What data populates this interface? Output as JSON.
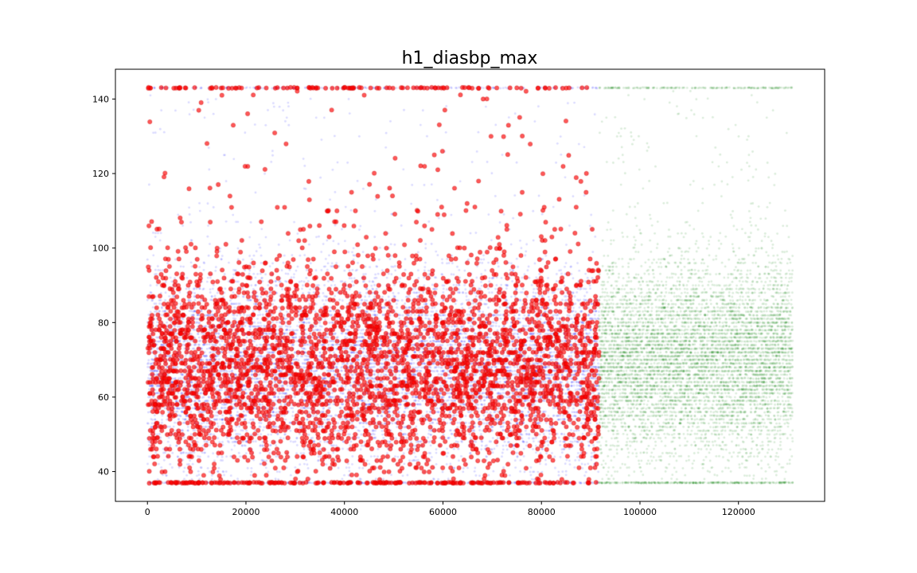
{
  "chart_data": {
    "type": "scatter",
    "title": "h1_diasbp_max",
    "xlabel": "",
    "ylabel": "",
    "xlim": [
      -6500,
      137500
    ],
    "ylim": [
      32,
      148
    ],
    "x_ticks": [
      0,
      20000,
      40000,
      60000,
      80000,
      100000,
      120000
    ],
    "y_ticks": [
      40,
      60,
      80,
      100,
      120,
      140
    ],
    "grid": false,
    "legend": "none",
    "series": [
      {
        "role": "train-negative",
        "color": "#0000ff",
        "opacity": 0.15,
        "x_range": [
          0,
          91700
        ],
        "y_range": [
          37,
          143
        ],
        "y_step": 1,
        "y_mode": 68,
        "y_spread": 13,
        "y_min_cluster": 37,
        "y_max_cluster": 143
      },
      {
        "role": "train-positive",
        "color": "#ff0000",
        "opacity": 0.65,
        "x_range": [
          0,
          91700
        ],
        "y_range": [
          37,
          143
        ],
        "y_step": 1,
        "y_mode": 68,
        "y_spread": 15,
        "y_min_cluster": 37,
        "y_max_cluster": 143
      },
      {
        "role": "test",
        "color": "#008000",
        "opacity": 0.15,
        "x_range": [
          91700,
          131000
        ],
        "y_range": [
          37,
          143
        ],
        "y_step": 1,
        "y_mode": 70,
        "y_spread": 13,
        "y_min_cluster": 37,
        "y_max_cluster": 143
      }
    ]
  }
}
